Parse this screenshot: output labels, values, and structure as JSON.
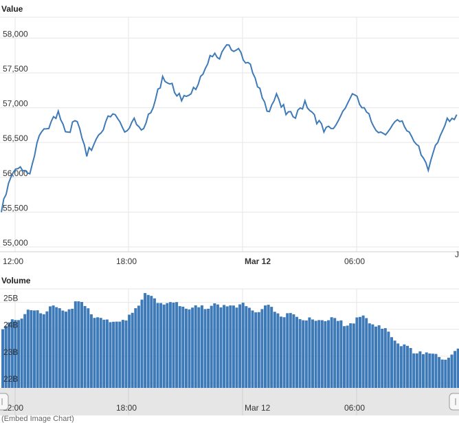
{
  "chart_data": [
    {
      "type": "line",
      "title": "Value",
      "y_ticks": [
        "55,000",
        "55,500",
        "56,000",
        "56,500",
        "57,000",
        "57,500",
        "58,000"
      ],
      "y_tick_values": [
        55000,
        55500,
        56000,
        56500,
        57000,
        57500,
        58000
      ],
      "ylim": [
        55000,
        58300
      ],
      "x_ticks": [
        "12:00",
        "18:00",
        "Mar 12",
        "06:00"
      ],
      "x_tick_hours": [
        1,
        7,
        13,
        19
      ],
      "xlim": [
        0,
        24
      ],
      "grid": true,
      "series": [
        {
          "color": "#3d7ab7",
          "x": [
            0.0,
            0.5,
            1.0,
            1.5,
            2.0,
            2.5,
            3.0,
            3.5,
            4.0,
            4.5,
            5.0,
            5.5,
            6.0,
            6.5,
            7.0,
            7.5,
            8.0,
            8.5,
            9.0,
            9.5,
            10.0,
            10.5,
            11.0,
            11.5,
            12.0,
            12.5,
            13.0,
            13.5,
            14.0,
            14.5,
            15.0,
            15.5,
            16.0,
            16.5,
            17.0,
            17.5,
            18.0,
            18.5,
            19.0,
            19.5,
            20.0,
            20.5,
            21.0,
            21.5,
            22.0,
            22.5,
            23.0,
            23.5,
            24.0
          ],
          "values": [
            55500,
            56000,
            56150,
            56050,
            56600,
            56700,
            56950,
            56650,
            56800,
            56300,
            56550,
            56800,
            56900,
            56650,
            56850,
            56700,
            57000,
            57450,
            57350,
            57100,
            57200,
            57450,
            57750,
            57700,
            57900,
            57850,
            57650,
            57300,
            56950,
            57200,
            56900,
            56850,
            57100,
            56900,
            56650,
            56700,
            56950,
            57200,
            57000,
            56800,
            56650,
            56700,
            56800,
            56650,
            56450,
            56100,
            56500,
            56850,
            56900
          ]
        }
      ]
    },
    {
      "type": "area",
      "title": "Volume",
      "y_ticks": [
        "22B",
        "23B",
        "24B",
        "25B"
      ],
      "y_tick_values": [
        22,
        23,
        24,
        25
      ],
      "ylim": [
        22,
        25.5
      ],
      "x_ticks": [
        "12:00",
        "18:00",
        "Mar 12",
        "06:00"
      ],
      "x_tick_hours": [
        1,
        7,
        13,
        19
      ],
      "xlim": [
        0,
        24
      ],
      "grid": true,
      "series": [
        {
          "color": "#3d7ab7",
          "x": [
            0.0,
            0.5,
            1.0,
            1.5,
            2.0,
            2.5,
            3.0,
            3.5,
            4.0,
            4.5,
            5.0,
            5.5,
            6.0,
            6.5,
            7.0,
            7.5,
            8.0,
            8.5,
            9.0,
            9.5,
            10.0,
            10.5,
            11.0,
            11.5,
            12.0,
            12.5,
            13.0,
            13.5,
            14.0,
            14.5,
            15.0,
            15.5,
            16.0,
            16.5,
            17.0,
            17.5,
            18.0,
            18.5,
            19.0,
            19.5,
            20.0,
            20.5,
            21.0,
            21.5,
            22.0,
            22.5,
            23.0,
            23.5,
            24.0
          ],
          "values": [
            24.0,
            24.3,
            24.5,
            24.7,
            24.6,
            24.8,
            24.7,
            24.8,
            25.0,
            24.8,
            24.4,
            24.3,
            24.4,
            24.3,
            24.8,
            25.3,
            25.1,
            25.0,
            24.9,
            24.9,
            24.8,
            24.8,
            24.9,
            24.8,
            24.9,
            24.9,
            24.8,
            24.7,
            24.8,
            24.6,
            24.5,
            24.5,
            24.4,
            24.3,
            24.4,
            24.3,
            24.2,
            24.3,
            24.4,
            24.2,
            24.0,
            23.8,
            23.4,
            23.2,
            23.2,
            23.1,
            23.0,
            22.9,
            23.2
          ]
        }
      ]
    }
  ],
  "navigator": {
    "x_ticks": [
      "12:00",
      "18:00",
      "Mar 12",
      "06:00"
    ]
  },
  "footer_note": "(Embed Image Chart)"
}
